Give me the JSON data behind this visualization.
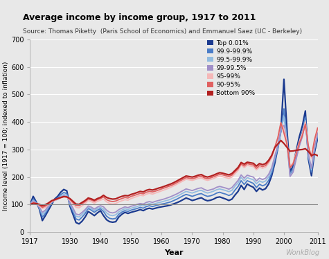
{
  "title": "Average income by income group, 1917 to 2011",
  "subtitle": "Source: Thomas Piketty  (Paris School of Economics) and Emmanuel Saez (UC - Berkeley)",
  "xlabel": "Year",
  "ylabel": "Income level (1917 = 100; indexed to inflation)",
  "watermark": "WonkBlog",
  "ylim": [
    0,
    700
  ],
  "yticks": [
    0,
    100,
    200,
    300,
    400,
    500,
    600,
    700
  ],
  "bg_color": "#e8e8e8",
  "grid_color": "#ffffff",
  "colors": {
    "top001": "#1b3a8f",
    "p999_9999": "#4a7cc7",
    "p995_999": "#92bce0",
    "p99_995": "#a08fc8",
    "p95_99": "#f5b8b8",
    "p90_95": "#e06060",
    "bottom90": "#b22020"
  },
  "legend_labels": [
    "Top 0.01%",
    "99.9-99.9%",
    "99.5-99.9%",
    "99-99.5%",
    "95-99%",
    "90-95%",
    "Bottom 90%"
  ],
  "years": [
    1917,
    1918,
    1919,
    1920,
    1921,
    1922,
    1923,
    1924,
    1925,
    1926,
    1927,
    1928,
    1929,
    1930,
    1931,
    1932,
    1933,
    1934,
    1935,
    1936,
    1937,
    1938,
    1939,
    1940,
    1941,
    1942,
    1943,
    1944,
    1945,
    1946,
    1947,
    1948,
    1949,
    1950,
    1951,
    1952,
    1953,
    1954,
    1955,
    1956,
    1957,
    1958,
    1959,
    1960,
    1961,
    1962,
    1963,
    1964,
    1965,
    1966,
    1967,
    1968,
    1969,
    1970,
    1971,
    1972,
    1973,
    1974,
    1975,
    1976,
    1977,
    1978,
    1979,
    1980,
    1981,
    1982,
    1983,
    1984,
    1985,
    1986,
    1987,
    1988,
    1989,
    1990,
    1991,
    1992,
    1993,
    1994,
    1995,
    1996,
    1997,
    1998,
    1999,
    2000,
    2001,
    2002,
    2003,
    2004,
    2005,
    2006,
    2007,
    2008,
    2009,
    2010,
    2011
  ],
  "top001": [
    100,
    130,
    110,
    85,
    42,
    60,
    80,
    100,
    120,
    130,
    145,
    155,
    150,
    95,
    65,
    35,
    30,
    40,
    55,
    75,
    68,
    60,
    70,
    78,
    60,
    45,
    38,
    36,
    38,
    55,
    65,
    72,
    68,
    72,
    75,
    78,
    82,
    78,
    84,
    87,
    84,
    87,
    90,
    92,
    94,
    96,
    99,
    103,
    107,
    112,
    118,
    124,
    120,
    115,
    118,
    122,
    125,
    118,
    114,
    116,
    120,
    126,
    128,
    124,
    120,
    115,
    120,
    135,
    148,
    170,
    155,
    175,
    168,
    163,
    148,
    160,
    153,
    158,
    175,
    205,
    250,
    305,
    370,
    555,
    370,
    220,
    240,
    295,
    345,
    385,
    440,
    265,
    205,
    290,
    340
  ],
  "p999_9999": [
    100,
    120,
    108,
    88,
    55,
    68,
    88,
    106,
    118,
    124,
    136,
    144,
    140,
    100,
    75,
    48,
    44,
    55,
    68,
    86,
    80,
    72,
    80,
    85,
    75,
    58,
    50,
    48,
    50,
    65,
    73,
    78,
    75,
    80,
    83,
    86,
    90,
    87,
    93,
    96,
    93,
    96,
    99,
    102,
    104,
    107,
    110,
    115,
    120,
    126,
    132,
    137,
    134,
    130,
    134,
    138,
    140,
    134,
    130,
    132,
    136,
    142,
    145,
    141,
    138,
    133,
    138,
    153,
    166,
    187,
    173,
    187,
    182,
    177,
    162,
    174,
    168,
    173,
    188,
    215,
    260,
    303,
    363,
    448,
    340,
    210,
    228,
    278,
    326,
    364,
    418,
    272,
    218,
    298,
    348
  ],
  "p995_999": [
    100,
    116,
    106,
    90,
    65,
    75,
    92,
    108,
    116,
    121,
    130,
    137,
    134,
    104,
    82,
    58,
    55,
    65,
    76,
    90,
    86,
    78,
    86,
    90,
    84,
    70,
    62,
    60,
    63,
    74,
    80,
    85,
    82,
    87,
    90,
    93,
    97,
    95,
    100,
    104,
    101,
    104,
    107,
    110,
    113,
    116,
    120,
    125,
    130,
    136,
    142,
    148,
    145,
    142,
    146,
    150,
    152,
    146,
    142,
    145,
    149,
    154,
    157,
    154,
    151,
    147,
    152,
    167,
    179,
    199,
    186,
    198,
    194,
    190,
    176,
    186,
    181,
    186,
    201,
    226,
    270,
    310,
    368,
    418,
    330,
    205,
    222,
    270,
    316,
    352,
    406,
    278,
    226,
    304,
    355
  ],
  "p99_995": [
    100,
    113,
    104,
    92,
    72,
    80,
    95,
    110,
    115,
    119,
    126,
    132,
    130,
    108,
    88,
    66,
    63,
    72,
    82,
    95,
    91,
    84,
    91,
    96,
    92,
    80,
    72,
    70,
    73,
    82,
    87,
    92,
    89,
    94,
    97,
    101,
    104,
    102,
    108,
    111,
    108,
    112,
    115,
    118,
    121,
    125,
    129,
    134,
    139,
    145,
    151,
    157,
    154,
    151,
    155,
    159,
    161,
    155,
    151,
    154,
    157,
    163,
    166,
    163,
    160,
    156,
    162,
    175,
    188,
    208,
    196,
    207,
    203,
    200,
    186,
    196,
    191,
    196,
    210,
    234,
    276,
    316,
    374,
    388,
    325,
    202,
    218,
    265,
    311,
    346,
    398,
    284,
    232,
    310,
    360
  ],
  "p95_99": [
    100,
    108,
    104,
    96,
    86,
    90,
    100,
    110,
    115,
    120,
    124,
    128,
    127,
    116,
    103,
    90,
    88,
    96,
    104,
    115,
    111,
    105,
    112,
    116,
    120,
    110,
    104,
    102,
    104,
    110,
    114,
    118,
    116,
    122,
    126,
    130,
    134,
    132,
    138,
    141,
    138,
    142,
    146,
    150,
    154,
    158,
    163,
    168,
    174,
    180,
    186,
    192,
    190,
    188,
    191,
    195,
    197,
    191,
    188,
    191,
    195,
    200,
    204,
    201,
    198,
    195,
    200,
    212,
    224,
    244,
    234,
    243,
    240,
    238,
    226,
    236,
    232,
    236,
    250,
    270,
    305,
    340,
    396,
    375,
    328,
    238,
    252,
    290,
    328,
    358,
    400,
    308,
    268,
    330,
    372
  ],
  "p90_95": [
    100,
    106,
    104,
    99,
    90,
    95,
    103,
    112,
    117,
    121,
    125,
    129,
    128,
    120,
    108,
    97,
    96,
    103,
    111,
    120,
    117,
    112,
    118,
    122,
    128,
    118,
    113,
    111,
    113,
    118,
    122,
    126,
    124,
    130,
    133,
    137,
    141,
    139,
    145,
    148,
    146,
    149,
    153,
    157,
    161,
    165,
    169,
    174,
    180,
    186,
    192,
    198,
    196,
    194,
    197,
    201,
    203,
    197,
    194,
    197,
    201,
    206,
    210,
    208,
    205,
    202,
    207,
    219,
    230,
    248,
    240,
    249,
    246,
    244,
    232,
    242,
    238,
    242,
    256,
    276,
    308,
    343,
    398,
    360,
    318,
    234,
    248,
    284,
    322,
    350,
    392,
    312,
    274,
    336,
    378
  ],
  "bottom90": [
    100,
    105,
    104,
    101,
    96,
    100,
    106,
    114,
    118,
    122,
    126,
    129,
    128,
    122,
    112,
    102,
    101,
    108,
    115,
    124,
    121,
    116,
    122,
    126,
    134,
    126,
    122,
    120,
    121,
    126,
    130,
    133,
    132,
    137,
    140,
    144,
    148,
    146,
    152,
    155,
    153,
    156,
    160,
    163,
    167,
    171,
    175,
    180,
    186,
    192,
    198,
    204,
    202,
    200,
    203,
    207,
    209,
    203,
    200,
    203,
    207,
    212,
    216,
    214,
    211,
    208,
    213,
    224,
    235,
    253,
    247,
    254,
    252,
    250,
    240,
    249,
    245,
    249,
    261,
    279,
    307,
    320,
    333,
    322,
    308,
    294,
    295,
    297,
    299,
    300,
    303,
    293,
    278,
    283,
    278
  ]
}
